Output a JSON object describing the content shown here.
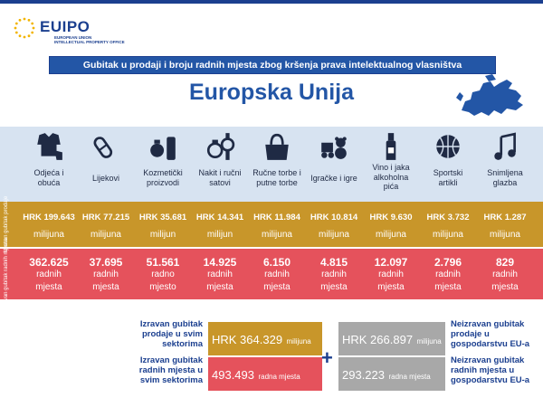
{
  "header": {
    "logo": "EUIPO",
    "logo_sub1": "EUROPEAN UNION",
    "logo_sub2": "INTELLECTUAL PROPERTY OFFICE",
    "banner": "Gubitak u prodaji i broju radnih mjesta zbog kršenja prava intelektualnog vlasništva",
    "title": "Europska Unija"
  },
  "side_labels": {
    "sales": "Izravan gubitak prodaje",
    "jobs": "Izravan gubitak radnih mjesta"
  },
  "sectors": [
    {
      "label1": "Odjeća i",
      "label2": "obuća",
      "label3": "",
      "icon": "clothing-icon",
      "sales": "HRK 199.643",
      "sales_unit": "milijuna",
      "jobs": "362.625",
      "jobs_u1": "radnih",
      "jobs_u2": "mjesta"
    },
    {
      "label1": "Lijekovi",
      "label2": "",
      "label3": "",
      "icon": "pill-icon",
      "sales": "HRK 77.215",
      "sales_unit": "milijuna",
      "jobs": "37.695",
      "jobs_u1": "radnih",
      "jobs_u2": "mjesta"
    },
    {
      "label1": "Kozmetički",
      "label2": "proizvodi",
      "label3": "",
      "icon": "cosmetics-icon",
      "sales": "HRK 35.681",
      "sales_unit": "milijun",
      "jobs": "51.561",
      "jobs_u1": "radno",
      "jobs_u2": "mjesto"
    },
    {
      "label1": "Nakit i ručni",
      "label2": "satovi",
      "label3": "",
      "icon": "jewelry-icon",
      "sales": "HRK 14.341",
      "sales_unit": "milijun",
      "jobs": "14.925",
      "jobs_u1": "radnih",
      "jobs_u2": "mjesta"
    },
    {
      "label1": "Ručne torbe i",
      "label2": "putne torbe",
      "label3": "",
      "icon": "handbag-icon",
      "sales": "HRK 11.984",
      "sales_unit": "milijuna",
      "jobs": "6.150",
      "jobs_u1": "radnih",
      "jobs_u2": "mjesta"
    },
    {
      "label1": "Igračke i igre",
      "label2": "",
      "label3": "",
      "icon": "toys-icon",
      "sales": "HRK 10.814",
      "sales_unit": "milijuna",
      "jobs": "4.815",
      "jobs_u1": "radnih",
      "jobs_u2": "mjesta"
    },
    {
      "label1": "Vino i jaka",
      "label2": "alkoholna",
      "label3": "pića",
      "icon": "wine-bottle-icon",
      "sales": "HRK 9.630",
      "sales_unit": "milijuna",
      "jobs": "12.097",
      "jobs_u1": "radnih",
      "jobs_u2": "mjesta"
    },
    {
      "label1": "Sportski",
      "label2": "artikli",
      "label3": "",
      "icon": "basketball-icon",
      "sales": "HRK 3.732",
      "sales_unit": "milijuna",
      "jobs": "2.796",
      "jobs_u1": "radnih",
      "jobs_u2": "mjesta"
    },
    {
      "label1": "Snimljena",
      "label2": "glazba",
      "label3": "",
      "icon": "music-note-icon",
      "sales": "HRK 1.287",
      "sales_unit": "milijuna",
      "jobs": "829",
      "jobs_u1": "radnih",
      "jobs_u2": "mjesta"
    }
  ],
  "totals": {
    "direct_sales_label": [
      "Izravan gubitak",
      "prodaje u svim",
      "sektorima"
    ],
    "direct_sales_value": "HRK 364.329",
    "direct_sales_unit": "milijuna",
    "direct_jobs_label": [
      "Izravan gubitak",
      "radnih mjesta u",
      "svim sektorima"
    ],
    "direct_jobs_value": "493.493",
    "direct_jobs_unit": "radna mjesta",
    "plus": "+",
    "indirect_sales_label": [
      "Neizravan gubitak",
      "prodaje u",
      "gospodarstvu EU-a"
    ],
    "indirect_sales_value": "HRK 266.897",
    "indirect_sales_unit": "milijuna",
    "indirect_jobs_label": [
      "Neizravan gubitak",
      "radnih mjesta u",
      "gospodarstvu EU-a"
    ],
    "indirect_jobs_value": "293.223",
    "indirect_jobs_unit": "radna mjesta"
  },
  "colors": {
    "blue": "#2356a6",
    "gold": "#c8962a",
    "red": "#e5525c",
    "grey": "#a8a8a8",
    "light": "#d7e3f1"
  }
}
